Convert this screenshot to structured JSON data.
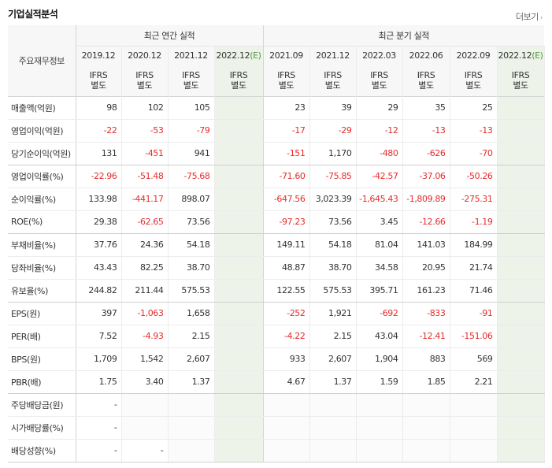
{
  "section_title": "기업실적분석",
  "more_label": "더보기",
  "header": {
    "row_label": "주요재무정보",
    "annual_group": "최근 연간 실적",
    "quarter_group": "최근 분기 실적",
    "annual_periods": [
      "2019.12",
      "2020.12",
      "2021.12",
      "2022.12"
    ],
    "quarter_periods": [
      "2021.09",
      "2021.12",
      "2022.03",
      "2022.06",
      "2022.09",
      "2022.12"
    ],
    "estimate_mark": "(E)",
    "ifrs_top": "IFRS",
    "ifrs_bottom": "별도"
  },
  "rows": [
    {
      "label": "매출액(억원)",
      "annual": [
        "98",
        "102",
        "105",
        ""
      ],
      "quarter": [
        "23",
        "39",
        "29",
        "35",
        "25",
        ""
      ]
    },
    {
      "label": "영업이익(억원)",
      "annual": [
        "-22",
        "-53",
        "-79",
        ""
      ],
      "quarter": [
        "-17",
        "-29",
        "-12",
        "-13",
        "-13",
        ""
      ]
    },
    {
      "label": "당기순이익(억원)",
      "annual": [
        "131",
        "-451",
        "941",
        ""
      ],
      "quarter": [
        "-151",
        "1,170",
        "-480",
        "-626",
        "-70",
        ""
      ]
    },
    {
      "label": "영업이익률(%)",
      "annual": [
        "-22.96",
        "-51.48",
        "-75.68",
        ""
      ],
      "quarter": [
        "-71.60",
        "-75.85",
        "-42.57",
        "-37.06",
        "-50.26",
        ""
      ]
    },
    {
      "label": "순이익률(%)",
      "annual": [
        "133.98",
        "-441.17",
        "898.07",
        ""
      ],
      "quarter": [
        "-647.56",
        "3,023.39",
        "-1,645.43",
        "-1,809.89",
        "-275.31",
        ""
      ]
    },
    {
      "label": "ROE(%)",
      "annual": [
        "29.38",
        "-62.65",
        "73.56",
        ""
      ],
      "quarter": [
        "-97.23",
        "73.56",
        "3.45",
        "-12.66",
        "-1.19",
        ""
      ]
    },
    {
      "label": "부채비율(%)",
      "annual": [
        "37.76",
        "24.36",
        "54.18",
        ""
      ],
      "quarter": [
        "149.11",
        "54.18",
        "81.04",
        "141.03",
        "184.99",
        ""
      ]
    },
    {
      "label": "당좌비율(%)",
      "annual": [
        "43.43",
        "82.25",
        "38.70",
        ""
      ],
      "quarter": [
        "48.87",
        "38.70",
        "34.58",
        "20.95",
        "21.74",
        ""
      ]
    },
    {
      "label": "유보율(%)",
      "annual": [
        "244.82",
        "211.44",
        "575.53",
        ""
      ],
      "quarter": [
        "122.55",
        "575.53",
        "395.71",
        "161.23",
        "71.46",
        ""
      ]
    },
    {
      "label": "EPS(원)",
      "annual": [
        "397",
        "-1,063",
        "1,658",
        ""
      ],
      "quarter": [
        "-252",
        "1,921",
        "-692",
        "-833",
        "-91",
        ""
      ]
    },
    {
      "label": "PER(배)",
      "annual": [
        "7.52",
        "-4.93",
        "2.15",
        ""
      ],
      "quarter": [
        "-4.22",
        "2.15",
        "43.04",
        "-12.41",
        "-151.06",
        ""
      ]
    },
    {
      "label": "BPS(원)",
      "annual": [
        "1,709",
        "1,542",
        "2,607",
        ""
      ],
      "quarter": [
        "933",
        "2,607",
        "1,904",
        "883",
        "569",
        ""
      ]
    },
    {
      "label": "PBR(배)",
      "annual": [
        "1.75",
        "3.40",
        "1.37",
        ""
      ],
      "quarter": [
        "4.67",
        "1.37",
        "1.59",
        "1.85",
        "2.21",
        ""
      ]
    },
    {
      "label": "주당배당금(원)",
      "annual": [
        "-",
        "",
        "",
        ""
      ],
      "quarter": [
        "",
        "",
        "",
        "",
        "",
        ""
      ]
    },
    {
      "label": "시가배당률(%)",
      "annual": [
        "-",
        "",
        "",
        ""
      ],
      "quarter": [
        "",
        "",
        "",
        "",
        "",
        ""
      ]
    },
    {
      "label": "배당성향(%)",
      "annual": [
        "-",
        "-",
        "",
        ""
      ],
      "quarter": [
        "",
        "",
        "",
        "",
        "",
        ""
      ]
    }
  ],
  "colors": {
    "negative": "#e62b2b",
    "ifrs": "#e4631c",
    "estimate_bg": "#eef3e9",
    "estimate_mark": "#4f9a3a"
  }
}
